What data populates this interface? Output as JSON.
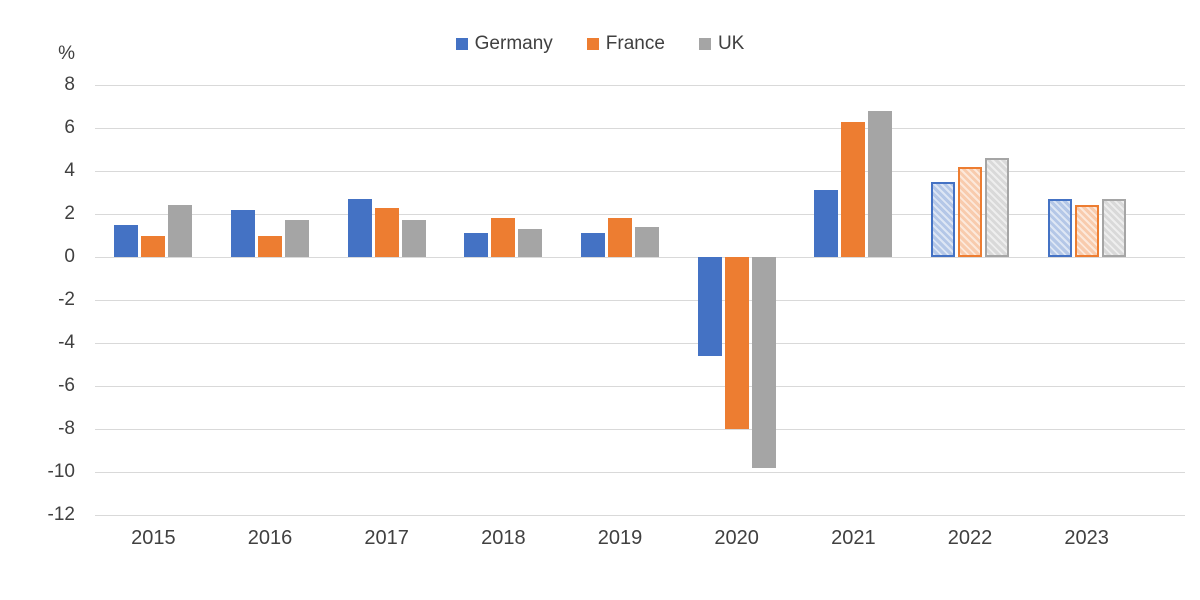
{
  "chart_data": {
    "type": "bar",
    "title": "",
    "unit_label": "%",
    "categories": [
      "2015",
      "2016",
      "2017",
      "2018",
      "2019",
      "2020",
      "2021",
      "2022",
      "2023"
    ],
    "series": [
      {
        "name": "Germany",
        "color": "#4472C4",
        "light_color": "#B4C7E7",
        "values": [
          1.5,
          2.2,
          2.7,
          1.1,
          1.1,
          -4.6,
          3.1,
          3.5,
          2.7
        ]
      },
      {
        "name": "France",
        "color": "#ED7D31",
        "light_color": "#F8CBAD",
        "values": [
          1.0,
          1.0,
          2.3,
          1.8,
          1.8,
          -8.0,
          6.3,
          4.2,
          2.4
        ]
      },
      {
        "name": "UK",
        "color": "#A5A5A5",
        "light_color": "#D9D9D9",
        "values": [
          2.4,
          1.7,
          1.7,
          1.3,
          1.4,
          -9.8,
          6.8,
          4.6,
          2.7
        ]
      }
    ],
    "forecast_categories": [
      "2022",
      "2023"
    ],
    "y_axis": {
      "min": -12,
      "max": 8,
      "step": 2,
      "tick_labels": [
        "8",
        "6",
        "4",
        "2",
        "0",
        "-2",
        "-4",
        "-6",
        "-8",
        "-10",
        "-12"
      ]
    },
    "legend_position": "top",
    "grid": true,
    "gridline_color": "#D9D9D9",
    "text_color": "#404040",
    "background_color": "#FFFFFF"
  }
}
